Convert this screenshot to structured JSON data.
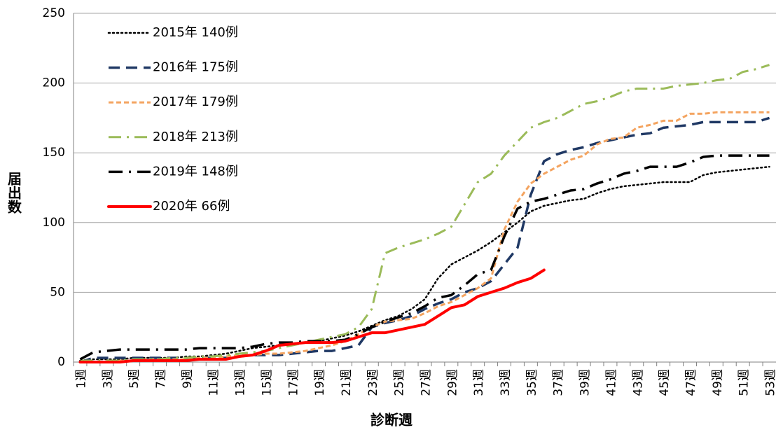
{
  "chart_data": {
    "type": "line",
    "x_label": "診断週",
    "y_label": "届出数",
    "categories": [
      "1週",
      null,
      "3週",
      null,
      "5週",
      null,
      "7週",
      null,
      "9週",
      null,
      "11週",
      null,
      "13週",
      null,
      "15週",
      null,
      "17週",
      null,
      "19週",
      null,
      "21週",
      null,
      "23週",
      null,
      "25週",
      null,
      "27週",
      null,
      "29週",
      null,
      "31週",
      null,
      "33週",
      null,
      "35週",
      null,
      "37週",
      null,
      "39週",
      null,
      "41週",
      null,
      "43週",
      null,
      "45週",
      null,
      "47週",
      null,
      "49週",
      null,
      "51週",
      null,
      "53週"
    ],
    "ylim": [
      0,
      250
    ],
    "yticks": [
      0,
      50,
      100,
      150,
      200,
      250
    ],
    "grid": true,
    "series": [
      {
        "name": "2015年 140例",
        "color": "#000000",
        "values": [
          1,
          2,
          2,
          2,
          3,
          3,
          3,
          3,
          4,
          4,
          5,
          6,
          8,
          10,
          11,
          12,
          13,
          14,
          15,
          17,
          19,
          22,
          26,
          30,
          33,
          38,
          45,
          60,
          70,
          75,
          80,
          86,
          93,
          100,
          108,
          112,
          114,
          116,
          117,
          121,
          124,
          126,
          127,
          128,
          129,
          129,
          129,
          134,
          136,
          137,
          138,
          139,
          140
        ]
      },
      {
        "name": "2016年 175例",
        "color": "#1f3864",
        "values": [
          0,
          3,
          3,
          3,
          3,
          3,
          3,
          3,
          3,
          3,
          3,
          3,
          4,
          5,
          5,
          5,
          6,
          7,
          8,
          8,
          10,
          12,
          25,
          28,
          30,
          33,
          38,
          42,
          45,
          50,
          53,
          58,
          70,
          82,
          120,
          144,
          149,
          152,
          154,
          157,
          159,
          161,
          163,
          164,
          168,
          169,
          170,
          172,
          172,
          172,
          172,
          172,
          175
        ]
      },
      {
        "name": "2017年 179例",
        "color": "#f4a460",
        "values": [
          0,
          0,
          0,
          1,
          1,
          2,
          2,
          2,
          2,
          3,
          3,
          4,
          5,
          5,
          6,
          6,
          7,
          8,
          10,
          12,
          15,
          20,
          25,
          29,
          30,
          31,
          35,
          40,
          43,
          48,
          53,
          60,
          95,
          115,
          128,
          135,
          140,
          145,
          148,
          156,
          160,
          161,
          168,
          170,
          173,
          173,
          178,
          178,
          179,
          179,
          179,
          179,
          179
        ]
      },
      {
        "name": "2018年 213例",
        "color": "#9bbb59",
        "values": [
          1,
          1,
          1,
          1,
          2,
          2,
          2,
          3,
          3,
          4,
          4,
          5,
          6,
          7,
          8,
          10,
          12,
          14,
          16,
          18,
          20,
          25,
          38,
          78,
          82,
          85,
          88,
          92,
          97,
          113,
          129,
          135,
          148,
          158,
          168,
          172,
          175,
          180,
          185,
          187,
          190,
          194,
          196,
          196,
          196,
          198,
          199,
          200,
          202,
          203,
          208,
          210,
          213
        ]
      },
      {
        "name": "2019年 148例",
        "color": "#000000",
        "values": [
          2,
          7,
          8,
          9,
          9,
          9,
          9,
          9,
          9,
          10,
          10,
          10,
          10,
          11,
          13,
          14,
          14,
          15,
          15,
          15,
          16,
          20,
          25,
          29,
          32,
          35,
          40,
          46,
          48,
          55,
          63,
          66,
          90,
          110,
          115,
          117,
          120,
          123,
          124,
          128,
          131,
          135,
          137,
          140,
          140,
          140,
          143,
          147,
          148,
          148,
          148,
          148,
          148
        ]
      },
      {
        "name": "2020年 66例",
        "color": "#ff0000",
        "values": [
          0,
          0,
          0,
          0,
          1,
          1,
          1,
          1,
          1,
          2,
          2,
          2,
          4,
          5,
          8,
          12,
          13,
          14,
          14,
          14,
          15,
          18,
          21,
          21,
          23,
          25,
          27,
          33,
          39,
          41,
          47,
          50,
          53,
          57,
          60,
          66,
          null,
          null,
          null,
          null,
          null,
          null,
          null,
          null,
          null,
          null,
          null,
          null,
          null,
          null,
          null,
          null,
          null
        ]
      }
    ]
  }
}
